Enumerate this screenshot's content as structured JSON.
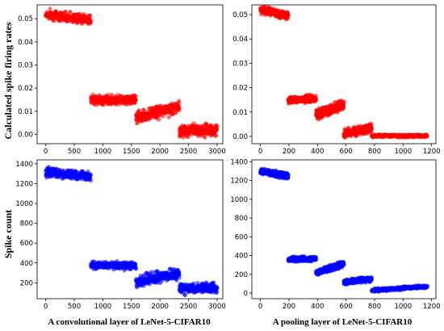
{
  "figure": {
    "left_ylabel_top": "Calculated spike firing rates",
    "left_ylabel_bottom": "Spike count",
    "xlabel_left": "A convolutional layer of LeNet-5-CIFAR10",
    "xlabel_right": "A pooling layer of LeNet-5-CIFAR10"
  },
  "chart_data": [
    {
      "type": "scatter",
      "id": "conv-rates",
      "color": "#ff0000",
      "xlim": [
        -150,
        3100
      ],
      "ylim": [
        -0.004,
        0.056
      ],
      "xticks": [
        0,
        500,
        1000,
        1500,
        2000,
        2500,
        3000
      ],
      "yticks": [
        0.0,
        0.01,
        0.02,
        0.03,
        0.04,
        0.05
      ],
      "ytick_labels": [
        "0.00",
        "0.01",
        "0.02",
        "0.03",
        "0.04",
        "0.05"
      ],
      "segments": [
        {
          "x": [
            0,
            790
          ],
          "y": [
            0.052,
            0.0495
          ],
          "spread": 0.003
        },
        {
          "x": [
            790,
            1580
          ],
          "y": [
            0.015,
            0.015
          ],
          "spread": 0.0028
        },
        {
          "x": [
            1580,
            2340
          ],
          "y": [
            0.0075,
            0.012
          ],
          "spread": 0.004
        },
        {
          "x": [
            2340,
            3000
          ],
          "y": [
            0.0015,
            0.002
          ],
          "spread": 0.0035
        }
      ]
    },
    {
      "type": "scatter",
      "id": "pool-rates",
      "color": "#ff0000",
      "xlim": [
        -60,
        1230
      ],
      "ylim": [
        -0.003,
        0.054
      ],
      "xticks": [
        0,
        200,
        400,
        600,
        800,
        1000,
        1200
      ],
      "yticks": [
        0.0,
        0.01,
        0.02,
        0.03,
        0.04,
        0.05
      ],
      "ytick_labels": [
        "0.00",
        "0.01",
        "0.02",
        "0.03",
        "0.04",
        "0.05"
      ],
      "segments": [
        {
          "x": [
            0,
            195
          ],
          "y": [
            0.052,
            0.0495
          ],
          "spread": 0.0022
        },
        {
          "x": [
            195,
            390
          ],
          "y": [
            0.015,
            0.0155
          ],
          "spread": 0.002
        },
        {
          "x": [
            390,
            585
          ],
          "y": [
            0.009,
            0.013
          ],
          "spread": 0.003
        },
        {
          "x": [
            585,
            780
          ],
          "y": [
            0.001,
            0.0035
          ],
          "spread": 0.0025
        },
        {
          "x": [
            780,
            1170
          ],
          "y": [
            0.0002,
            0.0002
          ],
          "spread": 0.0008
        }
      ]
    },
    {
      "type": "scatter",
      "id": "conv-count",
      "color": "#0000ff",
      "xlim": [
        -150,
        3100
      ],
      "ylim": [
        40,
        1440
      ],
      "xticks": [
        0,
        500,
        1000,
        1500,
        2000,
        2500,
        3000
      ],
      "yticks": [
        200,
        400,
        600,
        800,
        1000,
        1200,
        1400
      ],
      "ytick_labels": [
        "200",
        "400",
        "600",
        "800",
        "1000",
        "1200",
        "1400"
      ],
      "segments": [
        {
          "x": [
            0,
            790
          ],
          "y": [
            1320,
            1270
          ],
          "spread": 70
        },
        {
          "x": [
            790,
            1580
          ],
          "y": [
            375,
            375
          ],
          "spread": 55
        },
        {
          "x": [
            1580,
            2340
          ],
          "y": [
            215,
            300
          ],
          "spread": 80
        },
        {
          "x": [
            2340,
            3000
          ],
          "y": [
            145,
            150
          ],
          "spread": 70
        }
      ]
    },
    {
      "type": "scatter",
      "id": "pool-count",
      "color": "#0000ff",
      "xlim": [
        -60,
        1230
      ],
      "ylim": [
        -60,
        1420
      ],
      "xticks": [
        0,
        200,
        400,
        600,
        800,
        1000,
        1200
      ],
      "yticks": [
        0,
        200,
        400,
        600,
        800,
        1000,
        1200,
        1400
      ],
      "ytick_labels": [
        "0",
        "200",
        "400",
        "600",
        "800",
        "1000",
        "1200",
        "1400"
      ],
      "segments": [
        {
          "x": [
            0,
            195
          ],
          "y": [
            1300,
            1245
          ],
          "spread": 45
        },
        {
          "x": [
            195,
            390
          ],
          "y": [
            360,
            365
          ],
          "spread": 35
        },
        {
          "x": [
            390,
            585
          ],
          "y": [
            215,
            315
          ],
          "spread": 45
        },
        {
          "x": [
            585,
            780
          ],
          "y": [
            120,
            150
          ],
          "spread": 40
        },
        {
          "x": [
            780,
            1170
          ],
          "y": [
            30,
            70
          ],
          "spread": 25
        }
      ]
    }
  ]
}
